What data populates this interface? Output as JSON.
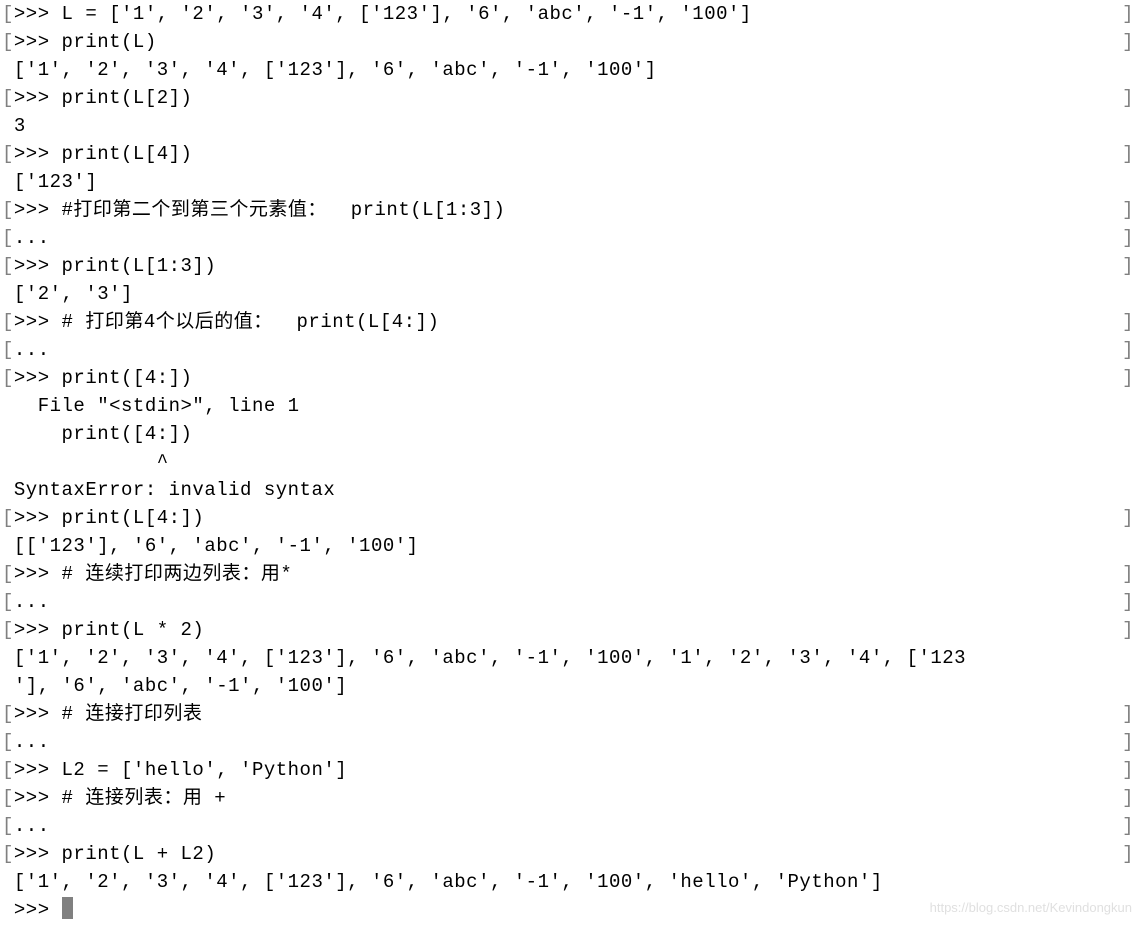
{
  "terminal": {
    "background_color": "#ffffff",
    "text_color": "#000000",
    "bracket_color": "#808080",
    "cursor_color": "#808080",
    "font_family": "Menlo, Monaco, Courier New, monospace",
    "font_size": 19,
    "line_height": 28,
    "lines": [
      {
        "bracket": true,
        "text": ">>> L = ['1', '2', '3', '4', ['123'], '6', 'abc', '-1', '100']"
      },
      {
        "bracket": true,
        "text": ">>> print(L)"
      },
      {
        "bracket": false,
        "text": " ['1', '2', '3', '4', ['123'], '6', 'abc', '-1', '100']"
      },
      {
        "bracket": true,
        "text": ">>> print(L[2])"
      },
      {
        "bracket": false,
        "text": " 3"
      },
      {
        "bracket": true,
        "text": ">>> print(L[4])"
      },
      {
        "bracket": false,
        "text": " ['123']"
      },
      {
        "bracket": true,
        "text": ">>> #打印第二个到第三个元素值：  print(L[1:3])"
      },
      {
        "bracket": true,
        "text": "..."
      },
      {
        "bracket": true,
        "text": ">>> print(L[1:3])"
      },
      {
        "bracket": false,
        "text": " ['2', '3']"
      },
      {
        "bracket": true,
        "text": ">>> # 打印第4个以后的值：  print(L[4:])"
      },
      {
        "bracket": true,
        "text": "..."
      },
      {
        "bracket": true,
        "text": ">>> print([4:])"
      },
      {
        "bracket": false,
        "text": "   File \"<stdin>\", line 1"
      },
      {
        "bracket": false,
        "text": "     print([4:])"
      },
      {
        "bracket": false,
        "text": "             ^"
      },
      {
        "bracket": false,
        "text": " SyntaxError: invalid syntax"
      },
      {
        "bracket": true,
        "text": ">>> print(L[4:])"
      },
      {
        "bracket": false,
        "text": " [['123'], '6', 'abc', '-1', '100']"
      },
      {
        "bracket": true,
        "text": ">>> # 连续打印两边列表：用*"
      },
      {
        "bracket": true,
        "text": "..."
      },
      {
        "bracket": true,
        "text": ">>> print(L * 2)"
      },
      {
        "bracket": false,
        "text": " ['1', '2', '3', '4', ['123'], '6', 'abc', '-1', '100', '1', '2', '3', '4', ['123"
      },
      {
        "bracket": false,
        "text": " '], '6', 'abc', '-1', '100']"
      },
      {
        "bracket": true,
        "text": ">>> # 连接打印列表"
      },
      {
        "bracket": true,
        "text": "..."
      },
      {
        "bracket": true,
        "text": ">>> L2 = ['hello', 'Python']"
      },
      {
        "bracket": true,
        "text": ">>> # 连接列表：用 +"
      },
      {
        "bracket": true,
        "text": "..."
      },
      {
        "bracket": true,
        "text": ">>> print(L + L2)"
      },
      {
        "bracket": false,
        "text": " ['1', '2', '3', '4', ['123'], '6', 'abc', '-1', '100', 'hello', 'Python']"
      },
      {
        "bracket": false,
        "text": " >>> ",
        "cursor": true
      }
    ]
  },
  "watermark": "https://blog.csdn.net/Kevindongkun"
}
